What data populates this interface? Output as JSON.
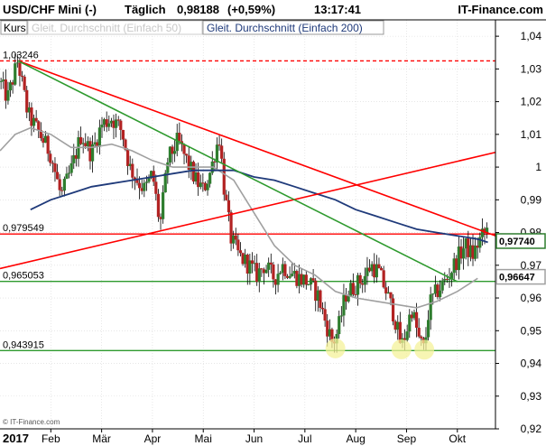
{
  "header": {
    "instrument": "USD/CHF Mini (-)",
    "interval": "Täglich",
    "price": "0,98188",
    "change": "(+0,59%)",
    "time": "13:17:41",
    "brand": "IT-Finance.com"
  },
  "legend": {
    "kurs": "Kurs",
    "sma50": "Gleit. Durchschnitt (Einfach 50)",
    "sma200": "Gleit. Durchschnitt (Einfach 200)"
  },
  "footer": {
    "copyright": "© IT-Finance.com"
  },
  "colors": {
    "background": "#ffffff",
    "header_bg": "#ffffff",
    "grid": "#d8d8d8",
    "candle_up": "#2e7d2e",
    "candle_down": "#b22222",
    "wick": "#000000",
    "sma50": "#a0a0a0",
    "sma200": "#1f3a7a",
    "resistance_red": "#ff0000",
    "dashed_red": "#ff0000",
    "support_green": "#2e9a2e",
    "trend_green": "#2e9a2e",
    "highlight_circle": "#f4f29a",
    "price_box_current": "#2e7d2e",
    "price_box_sma50": "#a0a0a0",
    "price_box_sma200": "#1f3a7a"
  },
  "chart_data": {
    "type": "candlestick",
    "x_axis": {
      "year_label": "2017",
      "months": [
        "Feb",
        "Mär",
        "Apr",
        "Mai",
        "Jun",
        "Jul",
        "Aug",
        "Sep",
        "Okt"
      ],
      "month_positions": [
        1.0,
        2.0,
        3.0,
        4.0,
        5.0,
        6.0,
        7.0,
        8.0,
        9.0
      ],
      "x_min": 0.0,
      "x_max": 9.75
    },
    "y_axis": {
      "ylim": [
        0.92,
        1.045
      ],
      "ticks": [
        {
          "v": 1.04,
          "label": "1,04"
        },
        {
          "v": 1.03,
          "label": "1,03"
        },
        {
          "v": 1.02,
          "label": "1,02"
        },
        {
          "v": 1.01,
          "label": "1,01"
        },
        {
          "v": 1.0,
          "label": "1"
        },
        {
          "v": 0.99,
          "label": "0,99"
        },
        {
          "v": 0.98,
          "label": "0,98"
        },
        {
          "v": 0.97,
          "label": "0,97"
        },
        {
          "v": 0.96,
          "label": "0,96"
        },
        {
          "v": 0.95,
          "label": "0,95"
        },
        {
          "v": 0.94,
          "label": "0,94"
        },
        {
          "v": 0.93,
          "label": "0,93"
        },
        {
          "v": 0.92,
          "label": "0,92"
        }
      ]
    },
    "price_path": [
      [
        0.0,
        1.026
      ],
      [
        0.15,
        1.021
      ],
      [
        0.35,
        1.0325
      ],
      [
        0.55,
        1.016
      ],
      [
        0.75,
        1.011
      ],
      [
        1.0,
        1.004
      ],
      [
        1.2,
        0.991
      ],
      [
        1.4,
        0.999
      ],
      [
        1.6,
        1.01
      ],
      [
        1.8,
        1.004
      ],
      [
        2.0,
        1.013
      ],
      [
        2.2,
        1.015
      ],
      [
        2.4,
        1.011
      ],
      [
        2.55,
        1.0
      ],
      [
        2.7,
        0.996
      ],
      [
        2.85,
        0.993
      ],
      [
        3.0,
        0.998
      ],
      [
        3.15,
        0.982
      ],
      [
        3.3,
        1.002
      ],
      [
        3.5,
        1.008
      ],
      [
        3.7,
        1.001
      ],
      [
        3.85,
        0.996
      ],
      [
        4.0,
        0.993
      ],
      [
        4.15,
        0.999
      ],
      [
        4.25,
        1.006
      ],
      [
        4.32,
        1.009
      ],
      [
        4.42,
        0.992
      ],
      [
        4.55,
        0.978
      ],
      [
        4.7,
        0.973
      ],
      [
        4.9,
        0.97
      ],
      [
        5.05,
        0.967
      ],
      [
        5.2,
        0.97
      ],
      [
        5.4,
        0.966
      ],
      [
        5.55,
        0.97
      ],
      [
        5.7,
        0.968
      ],
      [
        5.9,
        0.966
      ],
      [
        6.05,
        0.965
      ],
      [
        6.25,
        0.961
      ],
      [
        6.4,
        0.953
      ],
      [
        6.55,
        0.946
      ],
      [
        6.65,
        0.95
      ],
      [
        6.8,
        0.961
      ],
      [
        7.0,
        0.964
      ],
      [
        7.15,
        0.966
      ],
      [
        7.3,
        0.97
      ],
      [
        7.45,
        0.968
      ],
      [
        7.6,
        0.962
      ],
      [
        7.75,
        0.955
      ],
      [
        7.9,
        0.945
      ],
      [
        8.0,
        0.95
      ],
      [
        8.1,
        0.957
      ],
      [
        8.25,
        0.947
      ],
      [
        8.35,
        0.944
      ],
      [
        8.45,
        0.958
      ],
      [
        8.6,
        0.962
      ],
      [
        8.8,
        0.966
      ],
      [
        9.0,
        0.972
      ],
      [
        9.15,
        0.976
      ],
      [
        9.3,
        0.973
      ],
      [
        9.45,
        0.978
      ],
      [
        9.6,
        0.981
      ]
    ],
    "sma50_path": [
      [
        0.0,
        1.005
      ],
      [
        0.3,
        1.01
      ],
      [
        0.6,
        1.012
      ],
      [
        1.0,
        1.01
      ],
      [
        1.4,
        1.006
      ],
      [
        1.8,
        1.006
      ],
      [
        2.2,
        1.007
      ],
      [
        2.6,
        1.005
      ],
      [
        3.0,
        1.002
      ],
      [
        3.4,
        1.0
      ],
      [
        3.8,
        1.0
      ],
      [
        4.2,
        1.0
      ],
      [
        4.6,
        0.996
      ],
      [
        5.0,
        0.986
      ],
      [
        5.4,
        0.976
      ],
      [
        5.8,
        0.97
      ],
      [
        6.2,
        0.967
      ],
      [
        6.6,
        0.962
      ],
      [
        7.0,
        0.96
      ],
      [
        7.4,
        0.959
      ],
      [
        7.8,
        0.958
      ],
      [
        8.2,
        0.957
      ],
      [
        8.6,
        0.959
      ],
      [
        9.0,
        0.962
      ],
      [
        9.4,
        0.966
      ]
    ],
    "sma200_path": [
      [
        0.6,
        0.987
      ],
      [
        1.0,
        0.99
      ],
      [
        1.4,
        0.992
      ],
      [
        1.8,
        0.994
      ],
      [
        2.2,
        0.995
      ],
      [
        2.6,
        0.996
      ],
      [
        3.0,
        0.997
      ],
      [
        3.4,
        0.998
      ],
      [
        3.8,
        0.999
      ],
      [
        4.2,
        0.999
      ],
      [
        4.6,
        0.999
      ],
      [
        5.0,
        0.997
      ],
      [
        5.4,
        0.996
      ],
      [
        5.8,
        0.994
      ],
      [
        6.2,
        0.992
      ],
      [
        6.6,
        0.99
      ],
      [
        7.0,
        0.987
      ],
      [
        7.4,
        0.985
      ],
      [
        7.8,
        0.983
      ],
      [
        8.2,
        0.981
      ],
      [
        8.6,
        0.98
      ],
      [
        9.0,
        0.979
      ],
      [
        9.4,
        0.978
      ],
      [
        9.6,
        0.977
      ]
    ],
    "annotations": {
      "horizontal_lines": [
        {
          "name": "dashed-high-line",
          "value": 1.03246,
          "label": "1,03246",
          "style": "dashed",
          "color_key": "dashed_red"
        },
        {
          "name": "resistance-line",
          "value": 0.979549,
          "label": "0,979549",
          "style": "solid",
          "color_key": "resistance_red"
        },
        {
          "name": "support-line-upper",
          "value": 0.965053,
          "label": "0,965053",
          "style": "solid",
          "color_key": "support_green"
        },
        {
          "name": "support-line-lower",
          "value": 0.943915,
          "label": "0,943915",
          "style": "solid",
          "color_key": "support_green"
        }
      ],
      "trend_lines": [
        {
          "name": "red-downtrend-line",
          "from": [
            0.35,
            1.0325
          ],
          "to": [
            9.75,
            0.979
          ],
          "color_key": "resistance_red"
        },
        {
          "name": "red-uptrend-line",
          "from": [
            0.0,
            0.969
          ],
          "to": [
            9.75,
            1.0045
          ],
          "color_key": "resistance_red"
        },
        {
          "name": "green-downtrend-line",
          "from": [
            0.35,
            1.0325
          ],
          "to": [
            9.0,
            0.965
          ],
          "color_key": "trend_green"
        }
      ],
      "circles": [
        {
          "name": "low-circle-1",
          "x": 6.6,
          "y": 0.9446
        },
        {
          "name": "low-circle-2",
          "x": 7.9,
          "y": 0.9443
        },
        {
          "name": "low-circle-3",
          "x": 8.35,
          "y": 0.9442
        }
      ]
    },
    "price_boxes": [
      {
        "name": "current-price-box",
        "value": 0.9774,
        "label": "0,97740",
        "color_key": "price_box_current"
      },
      {
        "name": "sma50-price-box",
        "value": 0.96647,
        "label": "0,96647",
        "color_key": "price_box_sma50"
      }
    ]
  }
}
